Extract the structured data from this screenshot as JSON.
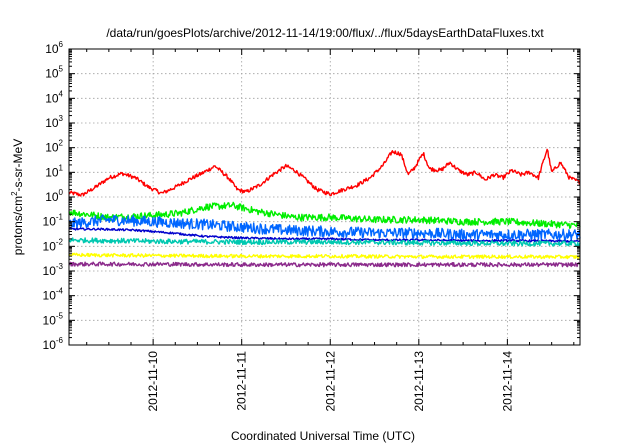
{
  "chart_data": {
    "type": "line",
    "title": "/data/run/goesPlots/archive/2012-11-14/19:00/flux/../flux/5daysEarthDataFluxes.txt",
    "xlabel": "Coordinated Universal Time (UTC)",
    "ylabel": {
      "parts": [
        "protons/cm",
        "2",
        "-s-sr-MeV"
      ]
    },
    "yscale": "log",
    "ylim_exponent": [
      -6,
      6
    ],
    "y_tick_labels": [
      {
        "base": "10",
        "exp": "-6"
      },
      {
        "base": "10",
        "exp": "-5"
      },
      {
        "base": "10",
        "exp": "-4"
      },
      {
        "base": "10",
        "exp": "-3"
      },
      {
        "base": "10",
        "exp": "-2"
      },
      {
        "base": "10",
        "exp": "-1"
      },
      {
        "base": "10",
        "exp": "0"
      },
      {
        "base": "10",
        "exp": "1"
      },
      {
        "base": "10",
        "exp": "2"
      },
      {
        "base": "10",
        "exp": "3"
      },
      {
        "base": "10",
        "exp": "4"
      },
      {
        "base": "10",
        "exp": "5"
      },
      {
        "base": "10",
        "exp": "6"
      }
    ],
    "xlim_day": [
      9.05,
      14.82
    ],
    "x_ticks": [
      {
        "day": 10,
        "label": "2012-11-10"
      },
      {
        "day": 11,
        "label": "2012-11-11"
      },
      {
        "day": 12,
        "label": "2012-11-12"
      },
      {
        "day": 13,
        "label": "2012-11-13"
      },
      {
        "day": 14,
        "label": "2012-11-14"
      }
    ],
    "grid": true,
    "series": [
      {
        "color": "#ff0000",
        "noise": 0.08,
        "points": [
          [
            9.05,
            1.5
          ],
          [
            9.2,
            1.2
          ],
          [
            9.35,
            2.5
          ],
          [
            9.5,
            6
          ],
          [
            9.65,
            9
          ],
          [
            9.8,
            6
          ],
          [
            9.95,
            2.5
          ],
          [
            10.1,
            1.4
          ],
          [
            10.25,
            2.5
          ],
          [
            10.4,
            5
          ],
          [
            10.55,
            9
          ],
          [
            10.7,
            18
          ],
          [
            10.85,
            6
          ],
          [
            10.95,
            2
          ],
          [
            11.05,
            1.6
          ],
          [
            11.2,
            3
          ],
          [
            11.35,
            8
          ],
          [
            11.5,
            18
          ],
          [
            11.6,
            12
          ],
          [
            11.7,
            6
          ],
          [
            11.85,
            2
          ],
          [
            12.0,
            1.3
          ],
          [
            12.15,
            2
          ],
          [
            12.3,
            3
          ],
          [
            12.45,
            6
          ],
          [
            12.6,
            20
          ],
          [
            12.7,
            70
          ],
          [
            12.8,
            55
          ],
          [
            12.88,
            8
          ],
          [
            12.95,
            15
          ],
          [
            13.05,
            60
          ],
          [
            13.12,
            14
          ],
          [
            13.25,
            12
          ],
          [
            13.35,
            25
          ],
          [
            13.45,
            12
          ],
          [
            13.55,
            8
          ],
          [
            13.65,
            10
          ],
          [
            13.75,
            5
          ],
          [
            13.85,
            8
          ],
          [
            13.95,
            6
          ],
          [
            14.05,
            12
          ],
          [
            14.15,
            8
          ],
          [
            14.25,
            10
          ],
          [
            14.35,
            6
          ],
          [
            14.45,
            90
          ],
          [
            14.5,
            10
          ],
          [
            14.6,
            25
          ],
          [
            14.7,
            6
          ],
          [
            14.82,
            4
          ]
        ]
      },
      {
        "color": "#00ee00",
        "noise": 0.14,
        "points": [
          [
            9.05,
            0.25
          ],
          [
            9.5,
            0.15
          ],
          [
            10.0,
            0.18
          ],
          [
            10.3,
            0.22
          ],
          [
            10.6,
            0.4
          ],
          [
            10.9,
            0.45
          ],
          [
            11.2,
            0.25
          ],
          [
            11.6,
            0.15
          ],
          [
            12.0,
            0.15
          ],
          [
            12.5,
            0.12
          ],
          [
            13.0,
            0.12
          ],
          [
            13.5,
            0.1
          ],
          [
            14.0,
            0.1
          ],
          [
            14.5,
            0.08
          ],
          [
            14.82,
            0.07
          ]
        ]
      },
      {
        "color": "#0066ff",
        "noise": 0.22,
        "points": [
          [
            9.05,
            0.08
          ],
          [
            9.5,
            0.12
          ],
          [
            10.0,
            0.1
          ],
          [
            10.5,
            0.08
          ],
          [
            11.0,
            0.06
          ],
          [
            11.5,
            0.045
          ],
          [
            12.0,
            0.04
          ],
          [
            12.5,
            0.035
          ],
          [
            13.0,
            0.035
          ],
          [
            13.5,
            0.03
          ],
          [
            14.0,
            0.03
          ],
          [
            14.5,
            0.03
          ],
          [
            14.82,
            0.03
          ]
        ]
      },
      {
        "color": "#0000cc",
        "noise": 0.04,
        "points": [
          [
            9.05,
            0.05
          ],
          [
            9.4,
            0.05
          ],
          [
            9.8,
            0.045
          ],
          [
            10.2,
            0.035
          ],
          [
            10.6,
            0.025
          ],
          [
            11.0,
            0.022
          ],
          [
            11.5,
            0.02
          ],
          [
            12.0,
            0.02
          ],
          [
            12.5,
            0.018
          ],
          [
            13.0,
            0.018
          ],
          [
            13.5,
            0.017
          ],
          [
            14.0,
            0.017
          ],
          [
            14.82,
            0.016
          ]
        ]
      },
      {
        "color": "#00c8b0",
        "noise": 0.1,
        "points": [
          [
            9.05,
            0.018
          ],
          [
            10.0,
            0.016
          ],
          [
            11.0,
            0.015
          ],
          [
            12.0,
            0.015
          ],
          [
            13.0,
            0.014
          ],
          [
            14.0,
            0.013
          ],
          [
            14.82,
            0.013
          ]
        ]
      },
      {
        "color": "#ffff00",
        "noise": 0.07,
        "points": [
          [
            9.05,
            0.0045
          ],
          [
            10.0,
            0.0042
          ],
          [
            11.0,
            0.004
          ],
          [
            12.0,
            0.004
          ],
          [
            13.0,
            0.0038
          ],
          [
            14.0,
            0.0038
          ],
          [
            14.82,
            0.0037
          ]
        ]
      },
      {
        "color": "#8b2a8b",
        "noise": 0.08,
        "points": [
          [
            9.05,
            0.0019
          ],
          [
            10.0,
            0.0019
          ],
          [
            11.0,
            0.0018
          ],
          [
            12.0,
            0.0018
          ],
          [
            13.0,
            0.0018
          ],
          [
            14.0,
            0.0018
          ],
          [
            14.82,
            0.0018
          ]
        ]
      }
    ]
  }
}
